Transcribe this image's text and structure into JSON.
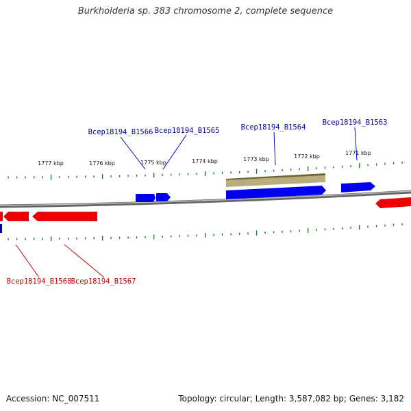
{
  "title": "Burkholderia sp. 383 chromosome 2, complete sequence",
  "footer": {
    "accession": "Accession: NC_007511",
    "summary": "Topology: circular; Length: 3,587,082 bp; Genes: 3,182"
  },
  "colors": {
    "forward_gene": "#0000ee",
    "reverse_gene": "#ee0000",
    "feature_bar": "#b8ad7c",
    "backbone": "#888888",
    "tick": "#1a7a1a",
    "forward_label": "#0000aa",
    "reverse_label": "#cc0000"
  },
  "kbp_labels": [
    "1777 kbp",
    "1776 kbp",
    "1775 kbp",
    "1774 kbp",
    "1773 kbp",
    "1772 kbp",
    "1771 kbp"
  ],
  "forward_labels": [
    "Bcep18194_B1566",
    "Bcep18194_B1565",
    "Bcep18194_B1564",
    "Bcep18194_B1563"
  ],
  "reverse_labels": [
    "Bcep18194_B1568",
    "Bcep18194_B1567"
  ]
}
